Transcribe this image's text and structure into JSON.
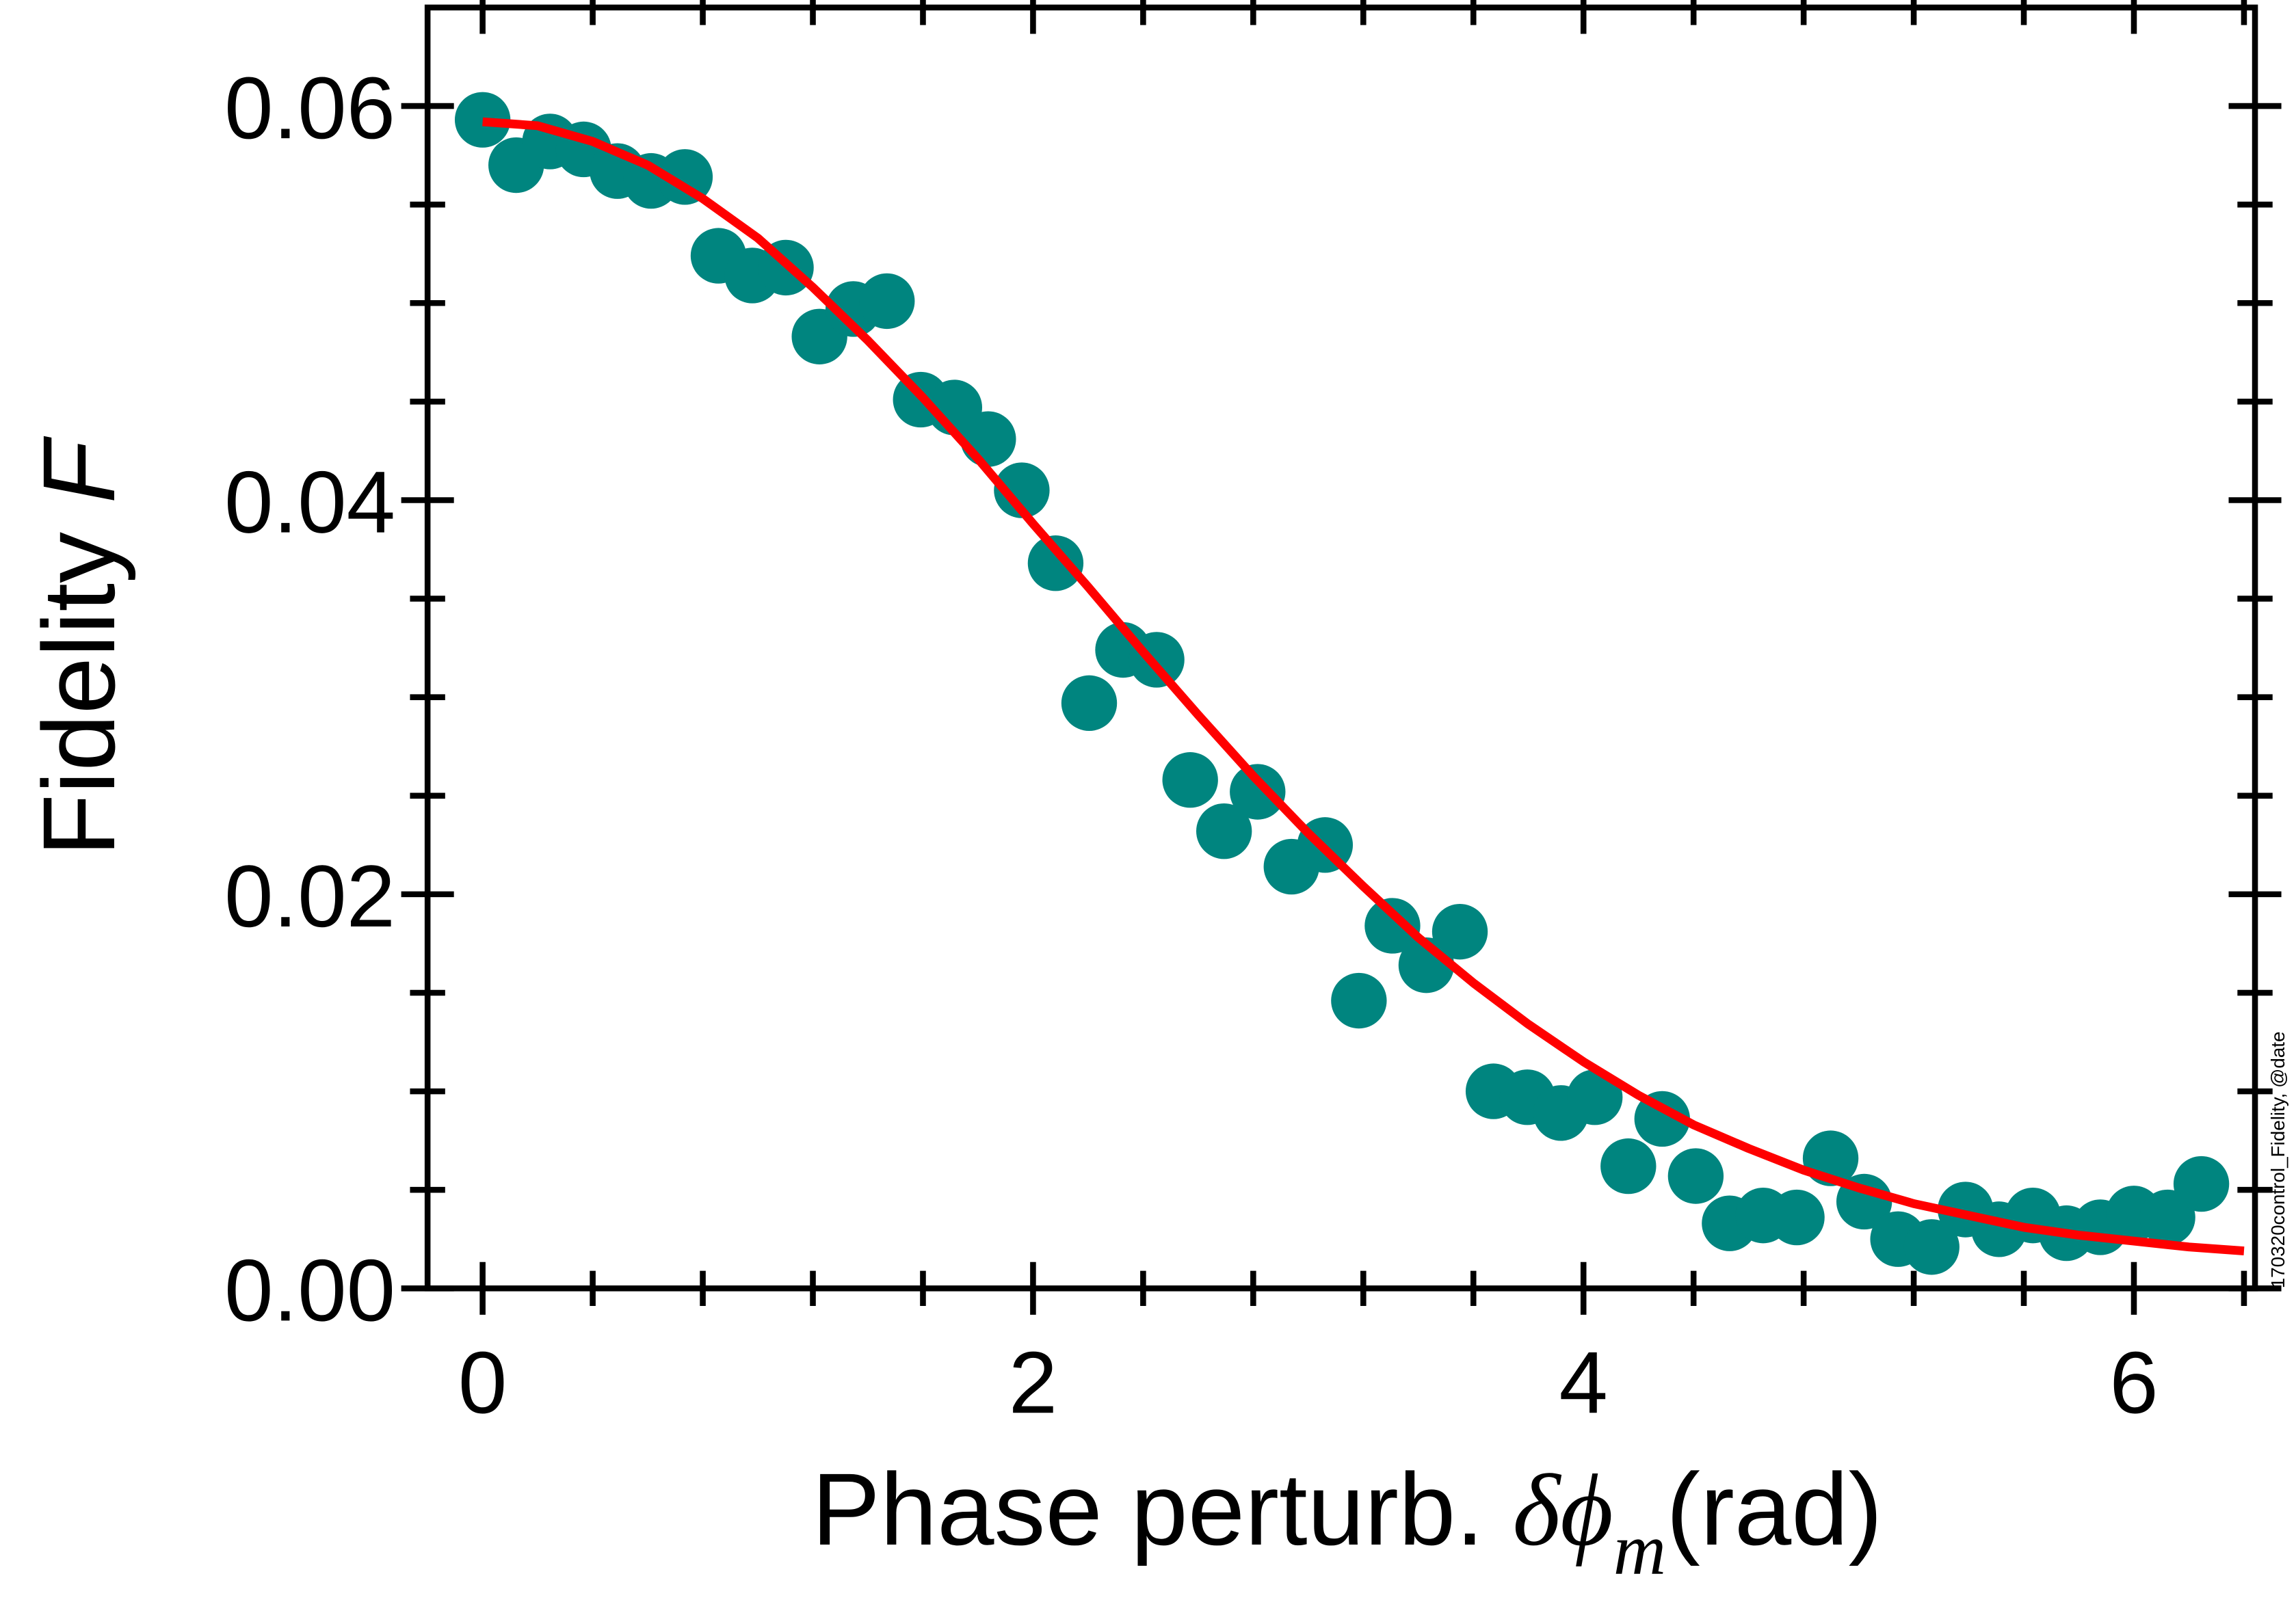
{
  "chart_data": {
    "type": "scatter",
    "ylabel": "Fidelity",
    "ylabel_symbol": "F",
    "xlabel": [
      "Phase perturb. ",
      "δϕ",
      "m",
      "(rad)"
    ],
    "side_note": "170320control_Fidelity, @date",
    "xlim": [
      -0.2,
      6.44
    ],
    "ylim": [
      0,
      0.065
    ],
    "xticks": [
      0,
      2,
      4,
      6
    ],
    "xminor": [
      0.4,
      0.8,
      1.2,
      1.6,
      2.4,
      2.8,
      3.2,
      3.6,
      4.4,
      4.8,
      5.2,
      5.6,
      6.4
    ],
    "yticks": [
      {
        "value": 0,
        "label": "0.00"
      },
      {
        "value": 0.02,
        "label": "0.02"
      },
      {
        "value": 0.04,
        "label": "0.04"
      },
      {
        "value": 0.06,
        "label": "0.06"
      }
    ],
    "yminor": [
      0.005,
      0.01,
      0.015,
      0.025,
      0.03,
      0.035,
      0.045,
      0.05,
      0.055
    ],
    "series": [
      {
        "name": "data",
        "color": "#00857f",
        "kind": "points",
        "x": [
          0,
          0.122,
          0.245,
          0.367,
          0.49,
          0.612,
          0.735,
          0.857,
          0.98,
          1.102,
          1.224,
          1.347,
          1.469,
          1.592,
          1.714,
          1.837,
          1.959,
          2.082,
          2.204,
          2.327,
          2.449,
          2.571,
          2.694,
          2.816,
          2.939,
          3.061,
          3.184,
          3.306,
          3.429,
          3.551,
          3.673,
          3.796,
          3.918,
          4.041,
          4.163,
          4.286,
          4.408,
          4.531,
          4.653,
          4.775,
          4.898,
          5.02,
          5.143,
          5.265,
          5.388,
          5.51,
          5.633,
          5.755,
          5.878,
          6.0,
          6.122,
          6.245
        ],
        "values": [
          0.0593,
          0.057,
          0.0582,
          0.0578,
          0.0567,
          0.0562,
          0.0564,
          0.0524,
          0.0514,
          0.0518,
          0.0483,
          0.0497,
          0.0501,
          0.0451,
          0.0447,
          0.0431,
          0.0405,
          0.0368,
          0.0297,
          0.0324,
          0.0319,
          0.0258,
          0.0232,
          0.0252,
          0.0214,
          0.0225,
          0.0146,
          0.0184,
          0.0164,
          0.0181,
          0.01,
          0.0097,
          0.0089,
          0.0097,
          0.0062,
          0.0086,
          0.0057,
          0.0033,
          0.0037,
          0.0036,
          0.0066,
          0.0044,
          0.0025,
          0.0021,
          0.004,
          0.003,
          0.0037,
          0.0028,
          0.0031,
          0.0038,
          0.0036,
          0.0053
        ]
      },
      {
        "name": "fit",
        "color": "#ff0000",
        "kind": "line",
        "x": [
          0,
          0.2,
          0.4,
          0.6,
          0.8,
          1.0,
          1.2,
          1.4,
          1.6,
          1.8,
          2.0,
          2.2,
          2.4,
          2.6,
          2.8,
          3.0,
          3.2,
          3.4,
          3.6,
          3.8,
          4.0,
          4.2,
          4.4,
          4.6,
          4.8,
          5.0,
          5.2,
          5.4,
          5.6,
          5.8,
          6.0,
          6.2,
          6.4
        ],
        "values": [
          0.0592,
          0.059,
          0.0582,
          0.057,
          0.0553,
          0.0533,
          0.0508,
          0.0481,
          0.0452,
          0.0421,
          0.0388,
          0.0356,
          0.0323,
          0.0291,
          0.026,
          0.0231,
          0.0204,
          0.0178,
          0.0155,
          0.0134,
          0.0115,
          0.0098,
          0.0083,
          0.0071,
          0.006,
          0.0051,
          0.0043,
          0.0037,
          0.0031,
          0.0027,
          0.0024,
          0.0021,
          0.0019
        ]
      }
    ]
  }
}
